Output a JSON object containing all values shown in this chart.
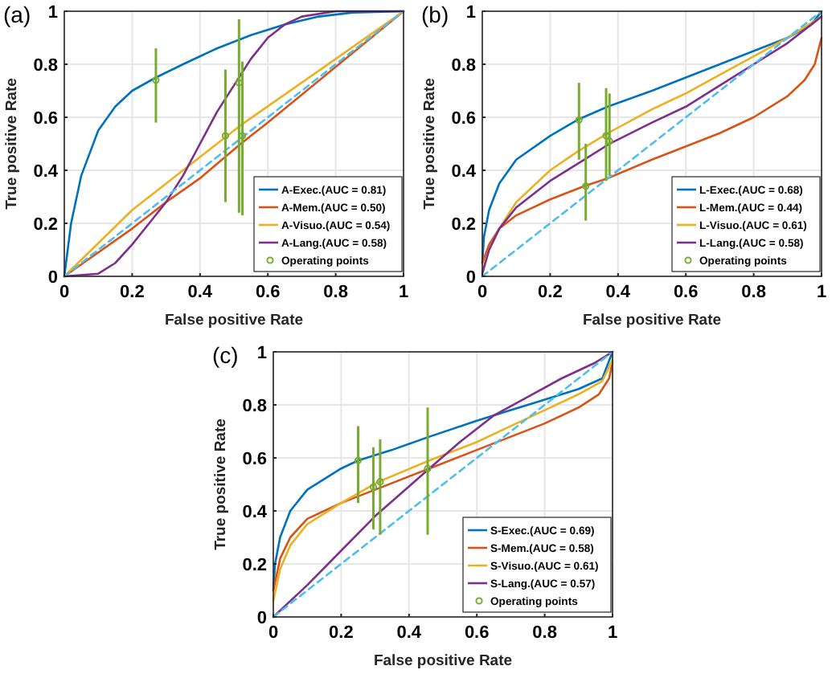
{
  "chart_data": [
    {
      "type": "line",
      "title": "(a)",
      "xlabel": "False positive Rate",
      "ylabel": "True positive Rate",
      "xlim": [
        0,
        1
      ],
      "ylim": [
        0,
        1
      ],
      "xticks": [
        0,
        0.2,
        0.4,
        0.6,
        0.8,
        1
      ],
      "yticks": [
        0,
        0.2,
        0.4,
        0.6,
        0.8,
        1
      ],
      "grid": true,
      "legend": "bottom right",
      "series": [
        {
          "name": "A-Exec.(AUC = 0.81)",
          "color": "#0072bd",
          "x": [
            0,
            0.02,
            0.05,
            0.1,
            0.15,
            0.2,
            0.27,
            0.35,
            0.45,
            0.55,
            0.65,
            0.75,
            0.85,
            1
          ],
          "values": [
            0,
            0.2,
            0.38,
            0.55,
            0.64,
            0.7,
            0.75,
            0.8,
            0.86,
            0.91,
            0.95,
            0.98,
            0.995,
            1
          ]
        },
        {
          "name": "A-Mem.(AUC = 0.50)",
          "color": "#d95319",
          "x": [
            0,
            0.2,
            0.3,
            0.4,
            0.52,
            0.6,
            0.8,
            1
          ],
          "values": [
            0,
            0.18,
            0.28,
            0.37,
            0.5,
            0.58,
            0.79,
            1
          ]
        },
        {
          "name": "A-Visuo.(AUC = 0.54)",
          "color": "#edb120",
          "x": [
            0,
            0.2,
            0.4,
            0.52,
            0.8,
            1
          ],
          "values": [
            0,
            0.25,
            0.45,
            0.57,
            0.82,
            1
          ]
        },
        {
          "name": "A-Lang.(AUC = 0.58)",
          "color": "#7e2f8e",
          "x": [
            0,
            0.1,
            0.15,
            0.2,
            0.25,
            0.3,
            0.35,
            0.4,
            0.45,
            0.5,
            0.55,
            0.6,
            0.65,
            0.7,
            0.8,
            1
          ],
          "values": [
            0,
            0.01,
            0.05,
            0.12,
            0.2,
            0.28,
            0.38,
            0.5,
            0.62,
            0.72,
            0.82,
            0.9,
            0.95,
            0.98,
            1,
            1
          ]
        },
        {
          "color": "#4dbeee",
          "line_style": "dashed",
          "x": [
            0,
            1
          ],
          "values": [
            0,
            1
          ]
        },
        {
          "name": "Operating points",
          "type": "scatter",
          "marker": "circle",
          "color": "#77ac30",
          "x": [
            0.27,
            0.475,
            0.515,
            0.525
          ],
          "values": [
            0.74,
            0.53,
            0.73,
            0.53
          ],
          "errors": [
            [
              0.58,
              0.86
            ],
            [
              0.28,
              0.78
            ],
            [
              0.24,
              0.97
            ],
            [
              0.23,
              0.81
            ]
          ]
        }
      ]
    },
    {
      "type": "line",
      "title": "(b)",
      "xlabel": "False positive Rate",
      "ylabel": "True positive Rate",
      "xlim": [
        0,
        1
      ],
      "ylim": [
        0,
        1
      ],
      "xticks": [
        0,
        0.2,
        0.4,
        0.6,
        0.8,
        1
      ],
      "yticks": [
        0,
        0.2,
        0.4,
        0.6,
        0.8,
        1
      ],
      "grid": true,
      "legend": "bottom right",
      "series": [
        {
          "name": "L-Exec.(AUC = 0.68)",
          "color": "#0072bd",
          "x": [
            0,
            0.005,
            0.02,
            0.05,
            0.1,
            0.2,
            0.28,
            0.37,
            0.5,
            0.6,
            0.7,
            0.8,
            0.9,
            0.97,
            1
          ],
          "values": [
            0.05,
            0.15,
            0.25,
            0.35,
            0.44,
            0.53,
            0.59,
            0.64,
            0.7,
            0.75,
            0.8,
            0.85,
            0.9,
            0.95,
            1
          ]
        },
        {
          "name": "L-Mem.(AUC = 0.44)",
          "color": "#d95319",
          "x": [
            0,
            0.02,
            0.05,
            0.1,
            0.2,
            0.3,
            0.37,
            0.5,
            0.6,
            0.7,
            0.8,
            0.9,
            0.95,
            0.98,
            1
          ],
          "values": [
            0.05,
            0.12,
            0.18,
            0.23,
            0.29,
            0.34,
            0.37,
            0.44,
            0.49,
            0.54,
            0.6,
            0.68,
            0.74,
            0.8,
            0.9
          ]
        },
        {
          "name": "L-Visuo.(AUC = 0.61)",
          "color": "#edb120",
          "x": [
            0,
            0.02,
            0.05,
            0.1,
            0.2,
            0.28,
            0.37,
            0.5,
            0.6,
            0.7,
            0.8,
            0.9,
            1
          ],
          "values": [
            0.02,
            0.1,
            0.18,
            0.28,
            0.4,
            0.47,
            0.54,
            0.63,
            0.69,
            0.76,
            0.83,
            0.9,
            0.98
          ]
        },
        {
          "name": "L-Lang.(AUC = 0.58)",
          "color": "#7e2f8e",
          "x": [
            0,
            0.02,
            0.05,
            0.1,
            0.2,
            0.3,
            0.375,
            0.5,
            0.6,
            0.7,
            0.8,
            0.9,
            1
          ],
          "values": [
            0.01,
            0.1,
            0.18,
            0.26,
            0.36,
            0.44,
            0.5,
            0.58,
            0.64,
            0.72,
            0.8,
            0.88,
            0.98
          ]
        },
        {
          "color": "#4dbeee",
          "line_style": "dashed",
          "x": [
            0,
            1
          ],
          "values": [
            0,
            1
          ]
        },
        {
          "name": "Operating points",
          "type": "scatter",
          "marker": "circle",
          "color": "#77ac30",
          "x": [
            0.285,
            0.305,
            0.365,
            0.375
          ],
          "values": [
            0.59,
            0.34,
            0.53,
            0.51
          ],
          "errors": [
            [
              0.44,
              0.73
            ],
            [
              0.21,
              0.5
            ],
            [
              0.36,
              0.71
            ],
            [
              0.38,
              0.69
            ]
          ]
        }
      ]
    },
    {
      "type": "line",
      "title": "(c)",
      "xlabel": "False positive Rate",
      "ylabel": "True positive Rate",
      "xlim": [
        0,
        1
      ],
      "ylim": [
        0,
        1
      ],
      "xticks": [
        0,
        0.2,
        0.4,
        0.6,
        0.8,
        1
      ],
      "yticks": [
        0,
        0.2,
        0.4,
        0.6,
        0.8,
        1
      ],
      "grid": true,
      "legend": "bottom right",
      "series": [
        {
          "name": "S-Exec.(AUC = 0.69)",
          "color": "#0072bd",
          "x": [
            0,
            0.005,
            0.02,
            0.05,
            0.1,
            0.2,
            0.25,
            0.35,
            0.46,
            0.6,
            0.7,
            0.8,
            0.9,
            0.97,
            1
          ],
          "values": [
            0.1,
            0.2,
            0.3,
            0.4,
            0.48,
            0.56,
            0.59,
            0.63,
            0.68,
            0.74,
            0.78,
            0.82,
            0.86,
            0.9,
            1
          ]
        },
        {
          "name": "S-Mem.(AUC = 0.58)",
          "color": "#d95319",
          "x": [
            0,
            0.02,
            0.05,
            0.1,
            0.2,
            0.3,
            0.46,
            0.6,
            0.7,
            0.8,
            0.9,
            0.96,
            0.99,
            1
          ],
          "values": [
            0.1,
            0.22,
            0.3,
            0.37,
            0.43,
            0.48,
            0.56,
            0.63,
            0.68,
            0.73,
            0.79,
            0.84,
            0.9,
            0.96
          ]
        },
        {
          "name": "S-Visuo.(AUC = 0.61)",
          "color": "#edb120",
          "x": [
            0,
            0.02,
            0.05,
            0.1,
            0.2,
            0.31,
            0.46,
            0.6,
            0.7,
            0.8,
            0.9,
            0.97,
            1
          ],
          "values": [
            0.06,
            0.18,
            0.27,
            0.35,
            0.43,
            0.51,
            0.59,
            0.66,
            0.72,
            0.78,
            0.84,
            0.89,
            0.97
          ]
        },
        {
          "name": "S-Lang.(AUC = 0.57)",
          "color": "#7e2f8e",
          "x": [
            0,
            0.1,
            0.2,
            0.3,
            0.46,
            0.55,
            0.65,
            0.75,
            0.85,
            0.95,
            1
          ],
          "values": [
            0,
            0.12,
            0.25,
            0.38,
            0.56,
            0.66,
            0.76,
            0.83,
            0.9,
            0.96,
            1
          ]
        },
        {
          "color": "#4dbeee",
          "line_style": "dashed",
          "x": [
            0,
            1
          ],
          "values": [
            0,
            1
          ]
        },
        {
          "name": "Operating points",
          "type": "scatter",
          "marker": "circle",
          "color": "#77ac30",
          "x": [
            0.25,
            0.295,
            0.315,
            0.455
          ],
          "values": [
            0.59,
            0.49,
            0.51,
            0.56
          ],
          "errors": [
            [
              0.43,
              0.72
            ],
            [
              0.33,
              0.64
            ],
            [
              0.31,
              0.67
            ],
            [
              0.31,
              0.79
            ]
          ]
        }
      ]
    }
  ]
}
